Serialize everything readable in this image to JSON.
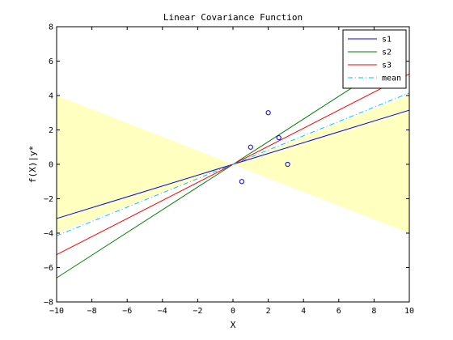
{
  "chart_data": {
    "type": "line",
    "title": "Linear Covariance Function",
    "xlabel": "X",
    "ylabel": "f(X)|y*",
    "xlim": [
      -10,
      10
    ],
    "ylim": [
      -8,
      8
    ],
    "xticks": [
      -10,
      -8,
      -6,
      -4,
      -2,
      0,
      2,
      4,
      6,
      8,
      10
    ],
    "yticks": [
      -8,
      -6,
      -4,
      -2,
      0,
      2,
      4,
      6,
      8
    ],
    "grid": false,
    "legend": "top-right",
    "band": {
      "color": "#ffffc0",
      "x": [
        -10,
        0,
        10
      ],
      "upper": [
        4.0,
        0.0,
        4.0
      ],
      "lower": [
        -4.0,
        0.0,
        -4.0
      ]
    },
    "series": [
      {
        "name": "s1",
        "color": "#0000ff",
        "style": "solid",
        "x": [
          -10,
          10
        ],
        "y": [
          -3.15,
          3.15
        ]
      },
      {
        "name": "s2",
        "color": "#008000",
        "style": "solid",
        "x": [
          -10,
          6.9
        ],
        "y": [
          -6.6,
          4.55
        ]
      },
      {
        "name": "s3",
        "color": "#ff0000",
        "style": "solid",
        "x": [
          -10,
          10
        ],
        "y": [
          -5.25,
          5.25
        ]
      },
      {
        "name": "mean",
        "color": "#00bfff",
        "style": "dashdot",
        "x": [
          -10,
          10
        ],
        "y": [
          -4.15,
          4.15
        ]
      }
    ],
    "points": {
      "color": "#0000ff",
      "marker": "circle",
      "x": [
        0.5,
        1.0,
        2.0,
        2.6,
        3.1
      ],
      "y": [
        -1.0,
        1.0,
        3.0,
        1.55,
        0.0
      ]
    }
  }
}
